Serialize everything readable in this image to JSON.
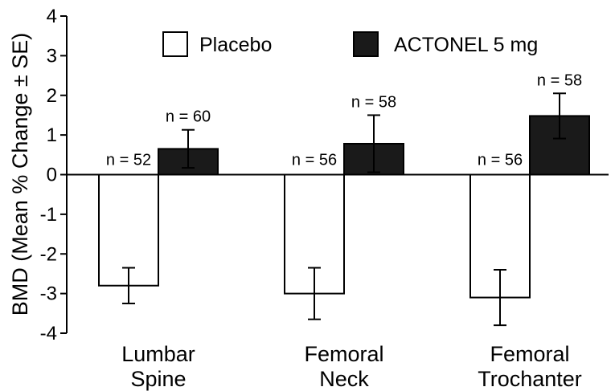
{
  "chart_data": {
    "type": "bar",
    "title": "",
    "xlabel": "",
    "ylabel": "BMD (Mean % Change ± SE)",
    "ylim": [
      -4,
      4
    ],
    "yticks": [
      4,
      3,
      2,
      1,
      0,
      -1,
      -2,
      -3,
      -4
    ],
    "categories": [
      {
        "id": "lumbar",
        "lines": [
          "Lumbar",
          "Spine"
        ]
      },
      {
        "id": "femoral-neck",
        "lines": [
          "Femoral",
          "Neck"
        ]
      },
      {
        "id": "femoral-trochanter",
        "lines": [
          "Femoral",
          "Trochanter"
        ]
      }
    ],
    "series": [
      {
        "name": "Placebo",
        "fill": "#ffffff",
        "values": [
          -2.8,
          -3.0,
          -3.1
        ],
        "error": [
          0.45,
          0.65,
          0.7
        ],
        "n_labels": [
          "n = 52",
          "n = 56",
          "n = 56"
        ]
      },
      {
        "name": "ACTONEL 5 mg",
        "fill": "#1a1a1a",
        "values": [
          0.65,
          0.78,
          1.48
        ],
        "error": [
          0.48,
          0.72,
          0.57
        ],
        "n_labels": [
          "n = 60",
          "n = 58",
          "n = 58"
        ]
      }
    ],
    "legend_position": "top",
    "grid": false
  }
}
